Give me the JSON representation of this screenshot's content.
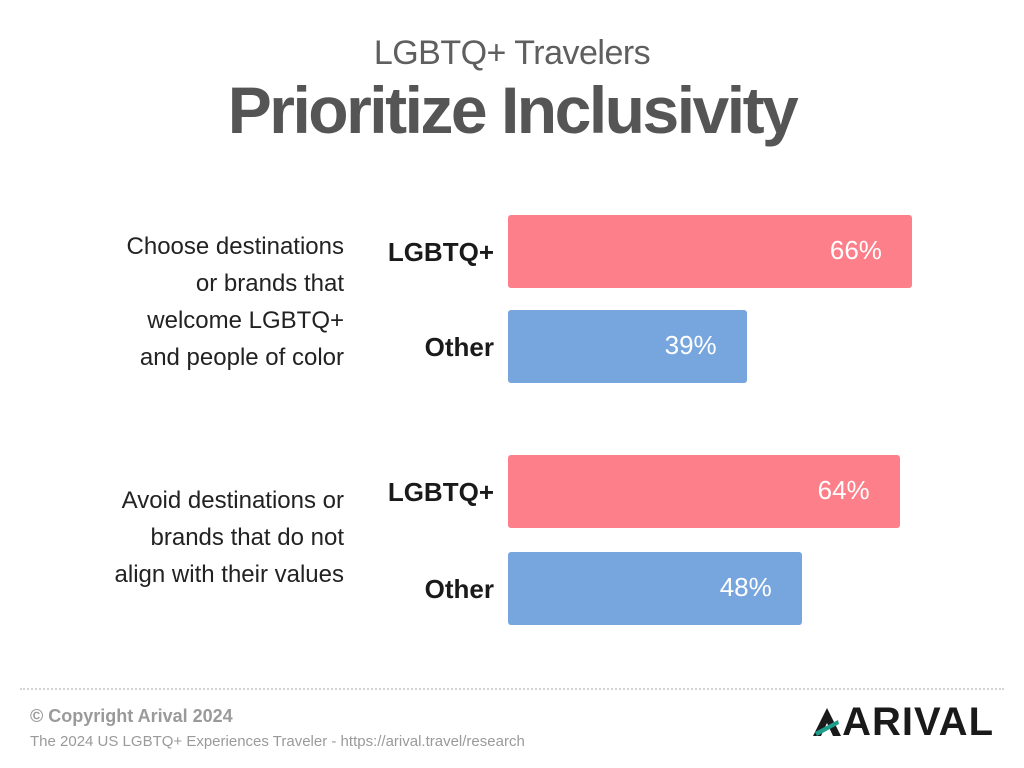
{
  "chart_data": {
    "type": "bar",
    "orientation": "horizontal",
    "subtitle": "LGBTQ+ Travelers",
    "title": "Prioritize Inclusivity",
    "xlim": [
      0,
      100
    ],
    "groups": [
      {
        "label": "Choose destinations or brands that welcome LGBTQ+ and people of color",
        "label_lines": [
          "Choose destinations",
          "or brands that",
          "welcome LGBTQ+",
          "and people of color"
        ],
        "bars": [
          {
            "category": "LGBTQ+",
            "value": 66,
            "value_label": "66%"
          },
          {
            "category": "Other",
            "value": 39,
            "value_label": "39%"
          }
        ]
      },
      {
        "label": "Avoid destinations or brands that do not align with their values",
        "label_lines": [
          "Avoid destinations or",
          "brands that do not",
          "align with their values"
        ],
        "bars": [
          {
            "category": "LGBTQ+",
            "value": 64,
            "value_label": "64%"
          },
          {
            "category": "Other",
            "value": 48,
            "value_label": "48%"
          }
        ]
      }
    ],
    "colors": {
      "LGBTQ+": "#fc7f89",
      "Other": "#77a5dd"
    }
  },
  "footer": {
    "copyright": "© Copyright Arival 2024",
    "source": "The 2024 US LGBTQ+ Experiences Traveler - https://arival.travel/research",
    "logo": "ARIVAL"
  },
  "colors": {
    "lgbtq": "#fc7f89",
    "other": "#77a5dd",
    "logo_accent": "#1e9d8b"
  }
}
